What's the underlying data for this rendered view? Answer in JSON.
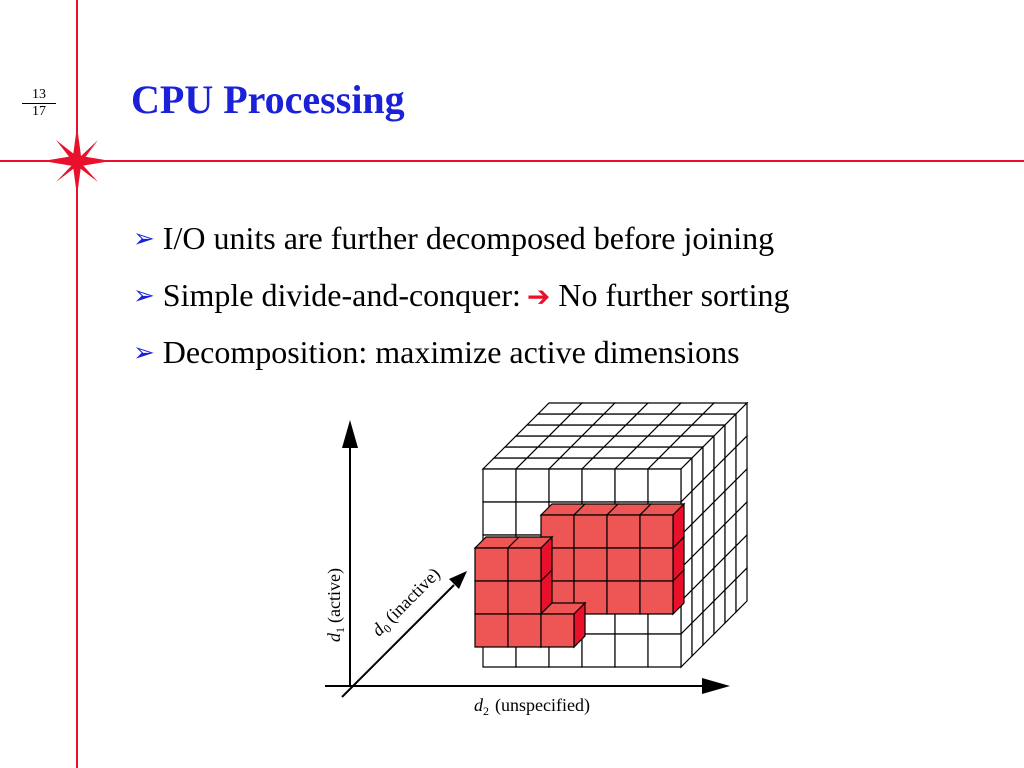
{
  "slide": {
    "page_current": "13",
    "page_total": "17",
    "title": "CPU Processing",
    "bullets": [
      {
        "text": "I/O units are further decomposed before joining"
      },
      {
        "text": "Simple divide-and-conquer:",
        "arrow_icon": "right-arrow-icon",
        "tail": "No further sorting"
      },
      {
        "text": "Decomposition: maximize active dimensions"
      }
    ],
    "bullet_icon": "arrow-bullet-icon"
  },
  "diagram": {
    "grid_size": 6,
    "axes": {
      "d1": {
        "var": "d",
        "sub": "1",
        "label": "(active)"
      },
      "d0": {
        "var": "d",
        "sub": "0",
        "label": "(inactive)"
      },
      "d2": {
        "var": "d",
        "sub": "2",
        "label": "(unspecified)"
      }
    }
  },
  "colors": {
    "accent_red": "#e8102a",
    "title_blue": "#1a21d8",
    "cube_red": "#ee5555"
  }
}
